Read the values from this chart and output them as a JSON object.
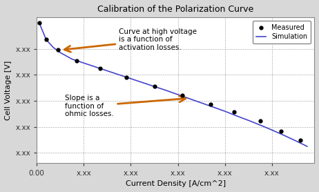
{
  "title": "Calibration of the Polarization Curve",
  "xlabel": "Current Density [A/cm^2]",
  "ylabel": "Cell Voltage [V]",
  "background_color": "#d8d8d8",
  "plot_bg_color": "#ffffff",
  "line_color": "#4444cc",
  "marker_color": "#000000",
  "arrow_color": "#cc6600",
  "annotation1_text": "Curve at high voltage\nis a function of\nactivation losses.",
  "annotation2_text": "Slope is a\nfunction of\nohmic losses.",
  "legend_labels": [
    "Measured",
    "Simulation"
  ],
  "sim_x": [
    0.01,
    0.04,
    0.07,
    0.1,
    0.15,
    0.2,
    0.25,
    0.3,
    0.35,
    0.4,
    0.45,
    0.5,
    0.55,
    0.6,
    0.65,
    0.7,
    0.75,
    0.8,
    0.85,
    0.9,
    0.95,
    1.0,
    1.05,
    1.1,
    1.15
  ],
  "sim_y": [
    1.0,
    0.935,
    0.905,
    0.885,
    0.86,
    0.845,
    0.83,
    0.815,
    0.8,
    0.785,
    0.77,
    0.755,
    0.74,
    0.724,
    0.708,
    0.692,
    0.676,
    0.66,
    0.642,
    0.625,
    0.607,
    0.588,
    0.568,
    0.547,
    0.525
  ],
  "meas_x": [
    0.01,
    0.04,
    0.09,
    0.17,
    0.27,
    0.38,
    0.5,
    0.62,
    0.74,
    0.84,
    0.95,
    1.04,
    1.12
  ],
  "meas_y": [
    1.0,
    0.935,
    0.895,
    0.855,
    0.825,
    0.79,
    0.755,
    0.72,
    0.686,
    0.658,
    0.622,
    0.583,
    0.548
  ],
  "xlim": [
    0.0,
    1.18
  ],
  "ylim": [
    0.46,
    1.02
  ],
  "xticks": [
    0.0,
    0.2,
    0.4,
    0.6,
    0.8,
    1.0
  ],
  "yticks": [
    0.5,
    0.6,
    0.7,
    0.8,
    0.9
  ],
  "xtick_labels": [
    "0.00",
    "x.xx",
    "x.xx",
    "x.xx",
    "x.xx",
    "x.xx"
  ],
  "ytick_labels": [
    "x.xx",
    "x.xx",
    "x.xx",
    "x.xx",
    "x.xx"
  ]
}
